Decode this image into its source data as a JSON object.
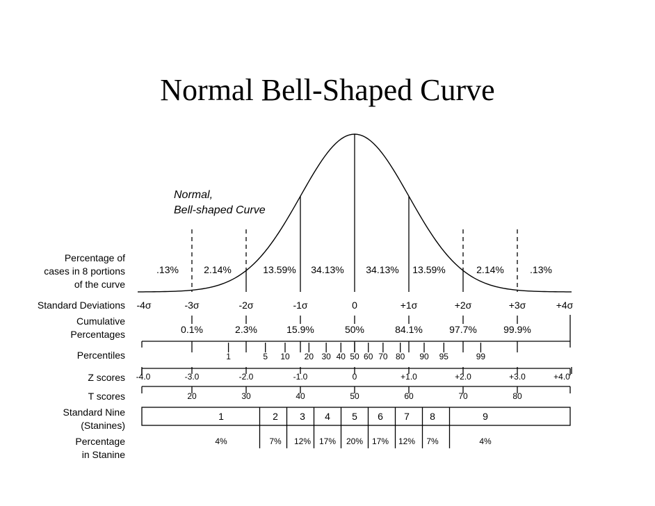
{
  "title": "Normal Bell-Shaped Curve",
  "curve_label": [
    "Normal,",
    "Bell-shaped Curve"
  ],
  "row_labels": {
    "portions": [
      "Percentage of",
      "cases in 8 portions",
      "of the curve"
    ],
    "standard_deviations": [
      "Standard Deviations"
    ],
    "cumulative": [
      "Cumulative",
      "Percentages"
    ],
    "percentiles": [
      "Percentiles"
    ],
    "z_scores": [
      "Z scores"
    ],
    "t_scores": [
      "T scores"
    ],
    "stanines": [
      "Standard Nine",
      "(Stanines)"
    ],
    "stanine_pct": [
      "Percentage",
      "in Stanine"
    ]
  },
  "portion_percentages": [
    ".13%",
    "2.14%",
    "13.59%",
    "34.13%",
    "34.13%",
    "13.59%",
    "2.14%",
    ".13%"
  ],
  "standard_deviations": [
    "-4σ",
    "-3σ",
    "-2σ",
    "-1σ",
    "0",
    "+1σ",
    "+2σ",
    "+3σ",
    "+4σ"
  ],
  "cumulative_percentages": [
    "0.1%",
    "2.3%",
    "15.9%",
    "50%",
    "84.1%",
    "97.7%",
    "99.9%"
  ],
  "percentiles": [
    "1",
    "5",
    "10",
    "20",
    "30",
    "40",
    "50",
    "60",
    "70",
    "80",
    "90",
    "95",
    "99"
  ],
  "z_scores": [
    "-4.0",
    "-3.0",
    "-2.0",
    "-1.0",
    "0",
    "+1.0",
    "+2.0",
    "+3.0",
    "+4.0"
  ],
  "t_scores": [
    "20",
    "30",
    "40",
    "50",
    "60",
    "70",
    "80"
  ],
  "stanines": [
    "1",
    "2",
    "3",
    "4",
    "5",
    "6",
    "7",
    "8",
    "9"
  ],
  "stanine_percentages": [
    "4%",
    "7%",
    "12%",
    "17%",
    "20%",
    "17%",
    "12%",
    "7%",
    "4%"
  ]
}
